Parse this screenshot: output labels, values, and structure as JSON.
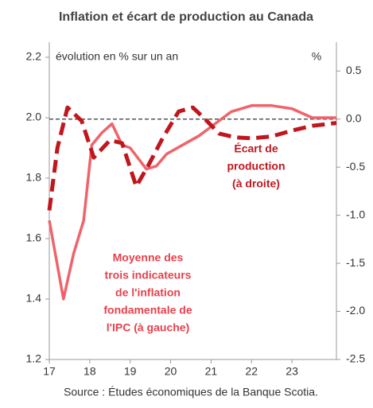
{
  "chart_data": {
    "type": "line",
    "title": "Inflation et écart de production au Canada",
    "y_axis_label": "évolution en % sur un an",
    "y2_axis_label": "%",
    "source": "Source : Études économiques de la Banque Scotia.",
    "annotations": [
      "Écart de",
      "production",
      "(à droite)",
      "Moyenne des",
      "trois indicateurs",
      "de l'inflation",
      "fondamentale de",
      "l'IPC (à gauche)"
    ],
    "xlim": [
      2017,
      2024.1
    ],
    "xticks": [
      {
        "value": 2017,
        "label": "17"
      },
      {
        "value": 2018,
        "label": "18"
      },
      {
        "value": 2019,
        "label": "19"
      },
      {
        "value": 2020,
        "label": "20"
      },
      {
        "value": 2021,
        "label": "21"
      },
      {
        "value": 2022,
        "label": "22"
      },
      {
        "value": 2023,
        "label": "23"
      }
    ],
    "ylim": [
      1.2,
      2.25
    ],
    "yticks": [
      {
        "value": 1.2,
        "label": "1.2"
      },
      {
        "value": 1.4,
        "label": "1.4"
      },
      {
        "value": 1.6,
        "label": "1.6"
      },
      {
        "value": 1.8,
        "label": "1.8"
      },
      {
        "value": 2.0,
        "label": "2.0"
      },
      {
        "value": 2.2,
        "label": "2.2"
      }
    ],
    "y2lim": [
      -2.5,
      0.8
    ],
    "y2ticks": [
      {
        "value": -2.5,
        "label": "-2.5"
      },
      {
        "value": -2.0,
        "label": "-2.0"
      },
      {
        "value": -1.5,
        "label": "-1.5"
      },
      {
        "value": -1.0,
        "label": "-1.0"
      },
      {
        "value": -0.5,
        "label": "-0.5"
      },
      {
        "value": 0,
        "label": "0.0"
      },
      {
        "value": 0.5,
        "label": "0.5"
      }
    ],
    "reference_line": {
      "value": 0,
      "axis": "y2"
    },
    "series": [
      {
        "name": "Moyenne des trois indicateurs de l'inflation fondamentale de l'IPC (à gauche)",
        "color": "#f0636b",
        "dashed": false,
        "axis": "y",
        "x": [
          2017,
          2017.35,
          2017.6,
          2017.85,
          2018.05,
          2018.3,
          2018.55,
          2018.8,
          2019.0,
          2019.4,
          2019.65,
          2019.9,
          2020.3,
          2020.7,
          2021.0,
          2021.5,
          2022.0,
          2022.5,
          2023.0,
          2023.5,
          2024.1
        ],
        "values": [
          1.66,
          1.4,
          1.55,
          1.66,
          1.91,
          1.95,
          1.98,
          1.91,
          1.9,
          1.83,
          1.84,
          1.88,
          1.91,
          1.94,
          1.97,
          2.02,
          2.04,
          2.04,
          2.03,
          2.0,
          2.0
        ]
      },
      {
        "name": "Écart de production (à droite)",
        "color": "#c0161e",
        "dashed": true,
        "axis": "y2",
        "x": [
          2017,
          2017.2,
          2017.45,
          2017.8,
          2018.1,
          2018.5,
          2018.8,
          2019.15,
          2019.45,
          2019.8,
          2020.2,
          2020.55,
          2020.85,
          2021.2,
          2021.6,
          2022.0,
          2022.5,
          2023.0,
          2023.5,
          2024.1
        ],
        "values": [
          -0.95,
          -0.3,
          0.12,
          -0.02,
          -0.4,
          -0.22,
          -0.25,
          -0.7,
          -0.48,
          -0.2,
          0.08,
          0.12,
          0.0,
          -0.15,
          -0.19,
          -0.2,
          -0.18,
          -0.12,
          -0.07,
          -0.04
        ]
      }
    ]
  }
}
